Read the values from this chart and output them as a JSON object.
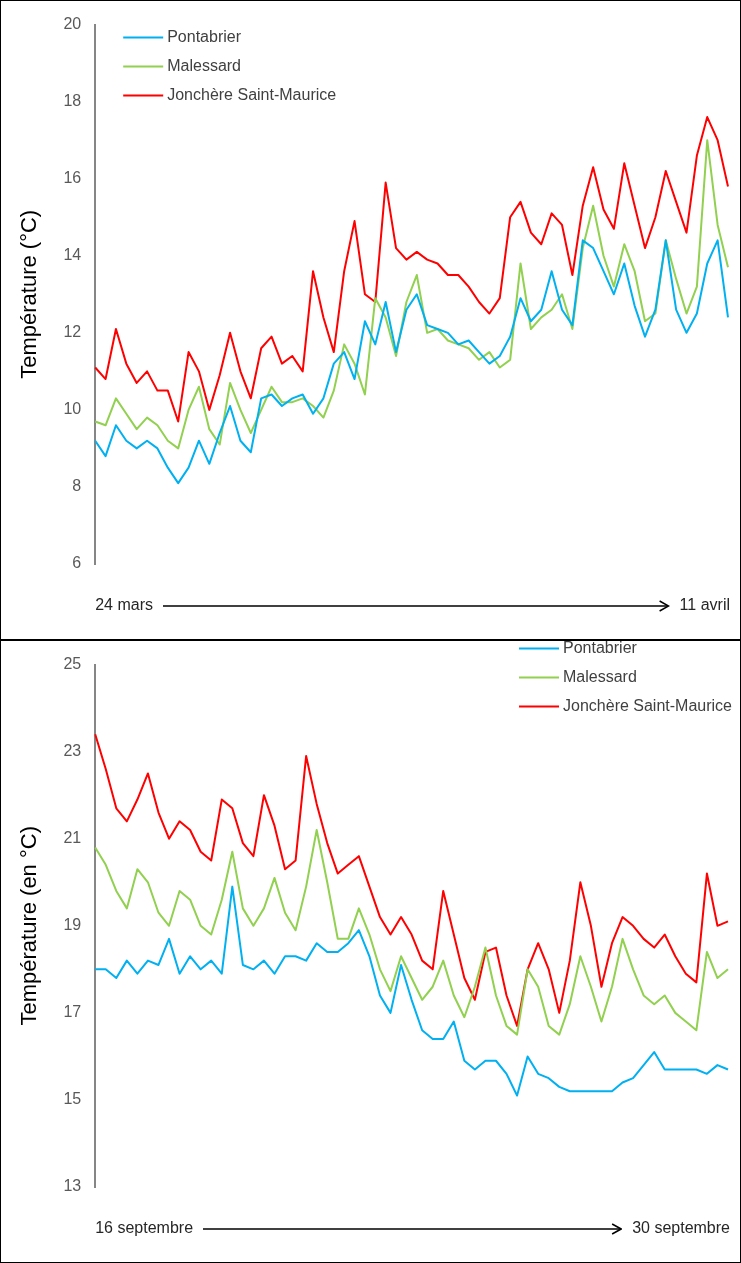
{
  "chart_data": [
    {
      "type": "line",
      "ylabel": "Température (°C)",
      "ylim": [
        6,
        20
      ],
      "yticks": [
        6,
        8,
        10,
        12,
        14,
        16,
        18,
        20
      ],
      "grid": false,
      "legend": "top left",
      "marker": "none",
      "line_style": "solid",
      "categories": [
        null,
        null,
        null,
        null,
        null,
        null,
        null,
        null,
        null,
        null,
        null,
        null,
        null,
        null,
        null,
        null,
        null,
        null,
        null,
        null,
        null,
        null,
        null,
        null,
        null,
        null,
        null,
        null,
        null,
        null,
        null,
        null,
        null,
        null,
        null,
        null,
        null,
        null,
        null,
        null,
        null,
        null,
        null,
        null,
        null,
        null,
        null,
        null,
        null,
        null,
        null,
        null,
        null,
        null,
        null,
        null,
        null,
        null,
        null,
        null,
        null,
        null
      ],
      "series": [
        {
          "name": "Pontabrier",
          "color": "#00b0f0",
          "values": [
            9.2,
            8.8,
            9.6,
            9.2,
            9.0,
            9.2,
            9.0,
            8.5,
            8.1,
            8.5,
            9.2,
            8.6,
            9.4,
            10.1,
            9.2,
            8.9,
            10.3,
            10.4,
            10.1,
            10.3,
            10.4,
            9.9,
            10.3,
            11.2,
            11.5,
            10.8,
            12.3,
            11.7,
            12.8,
            11.5,
            12.6,
            13.0,
            12.2,
            12.1,
            12.0,
            11.7,
            11.8,
            11.5,
            11.2,
            11.4,
            11.9,
            12.9,
            12.3,
            12.6,
            13.6,
            12.6,
            12.2,
            14.4,
            14.2,
            13.6,
            13.0,
            13.8,
            12.7,
            11.9,
            12.6,
            14.4,
            12.6,
            12.0,
            12.5,
            13.8,
            14.4,
            12.4
          ]
        },
        {
          "name": "Malessard",
          "color": "#92d050",
          "values": [
            9.7,
            9.6,
            10.3,
            9.9,
            9.5,
            9.8,
            9.6,
            9.2,
            9.0,
            10.0,
            10.6,
            9.5,
            9.1,
            10.7,
            10.0,
            9.4,
            10.0,
            10.6,
            10.2,
            10.2,
            10.3,
            10.1,
            9.8,
            10.5,
            11.7,
            11.2,
            10.4,
            12.9,
            12.4,
            11.4,
            12.8,
            13.5,
            12.0,
            12.1,
            11.8,
            11.7,
            11.6,
            11.3,
            11.5,
            11.1,
            11.3,
            13.8,
            12.1,
            12.4,
            12.6,
            13.0,
            12.1,
            14.2,
            15.3,
            14.0,
            13.2,
            14.3,
            13.6,
            12.3,
            12.5,
            14.4,
            13.4,
            12.5,
            13.2,
            17.0,
            14.8,
            13.7
          ]
        },
        {
          "name": "Jonchère Saint-Maurice",
          "color": "#ff0000",
          "values": [
            11.1,
            10.8,
            12.1,
            11.2,
            10.7,
            11.0,
            10.5,
            10.5,
            9.7,
            11.5,
            11.0,
            10.0,
            10.9,
            12.0,
            11.0,
            10.3,
            11.6,
            11.9,
            11.2,
            11.4,
            11.0,
            13.6,
            12.4,
            11.5,
            13.6,
            14.9,
            13.0,
            12.8,
            15.9,
            14.2,
            13.9,
            14.1,
            13.9,
            13.8,
            13.5,
            13.5,
            13.2,
            12.8,
            12.5,
            12.9,
            15.0,
            15.4,
            14.6,
            14.3,
            15.1,
            14.8,
            13.5,
            15.3,
            16.3,
            15.2,
            14.7,
            16.4,
            15.3,
            14.2,
            15.0,
            16.2,
            15.4,
            14.6,
            16.6,
            17.6,
            17.0,
            15.8
          ]
        }
      ],
      "annotations": [
        "24 mars",
        "11 avril"
      ]
    },
    {
      "type": "line",
      "ylabel": "Température (en °C)",
      "ylim": [
        13,
        25
      ],
      "yticks": [
        13,
        15,
        17,
        19,
        21,
        23,
        25
      ],
      "grid": false,
      "legend": "top right",
      "marker": "none",
      "line_style": "solid",
      "categories": [
        null,
        null,
        null,
        null,
        null,
        null,
        null,
        null,
        null,
        null,
        null,
        null,
        null,
        null,
        null,
        null,
        null,
        null,
        null,
        null,
        null,
        null,
        null,
        null,
        null,
        null,
        null,
        null,
        null,
        null,
        null,
        null,
        null,
        null,
        null,
        null,
        null,
        null,
        null,
        null,
        null,
        null,
        null,
        null,
        null,
        null,
        null,
        null,
        null,
        null,
        null,
        null,
        null,
        null,
        null,
        null,
        null,
        null,
        null,
        null,
        null
      ],
      "series": [
        {
          "name": "Pontabrier",
          "color": "#00b0f0",
          "values": [
            18.0,
            18.0,
            17.8,
            18.2,
            17.9,
            18.2,
            18.1,
            18.7,
            17.9,
            18.3,
            18.0,
            18.2,
            17.9,
            19.9,
            18.1,
            18.0,
            18.2,
            17.9,
            18.3,
            18.3,
            18.2,
            18.6,
            18.4,
            18.4,
            18.6,
            18.9,
            18.3,
            17.4,
            17.0,
            18.1,
            17.3,
            16.6,
            16.4,
            16.4,
            16.8,
            15.9,
            15.7,
            15.9,
            15.9,
            15.6,
            15.1,
            16.0,
            15.6,
            15.5,
            15.3,
            15.2,
            15.2,
            15.2,
            15.2,
            15.2,
            15.4,
            15.5,
            15.8,
            16.1,
            15.7,
            15.7,
            15.7,
            15.7,
            15.6,
            15.8,
            15.7
          ]
        },
        {
          "name": "Malessard",
          "color": "#92d050",
          "values": [
            20.8,
            20.4,
            19.8,
            19.4,
            20.3,
            20.0,
            19.3,
            19.0,
            19.8,
            19.6,
            19.0,
            18.8,
            19.6,
            20.7,
            19.4,
            19.0,
            19.4,
            20.1,
            19.3,
            18.9,
            19.9,
            21.2,
            20.0,
            18.7,
            18.7,
            19.4,
            18.8,
            18.0,
            17.5,
            18.3,
            17.8,
            17.3,
            17.6,
            18.2,
            17.4,
            16.9,
            17.6,
            18.5,
            17.4,
            16.7,
            16.5,
            18.0,
            17.6,
            16.7,
            16.5,
            17.2,
            18.3,
            17.6,
            16.8,
            17.6,
            18.7,
            18.0,
            17.4,
            17.2,
            17.4,
            17.0,
            16.8,
            16.6,
            18.4,
            17.8,
            18.0
          ]
        },
        {
          "name": "Jonchère Saint-Maurice",
          "color": "#ff0000",
          "values": [
            23.4,
            22.6,
            21.7,
            21.4,
            21.9,
            22.5,
            21.6,
            21.0,
            21.4,
            21.2,
            20.7,
            20.5,
            21.9,
            21.7,
            20.9,
            20.6,
            22.0,
            21.3,
            20.3,
            20.5,
            22.9,
            21.8,
            20.9,
            20.2,
            20.4,
            20.6,
            19.9,
            19.2,
            18.8,
            19.2,
            18.8,
            18.2,
            18.0,
            19.8,
            18.8,
            17.8,
            17.3,
            18.4,
            18.5,
            17.4,
            16.7,
            18.0,
            18.6,
            18.0,
            17.0,
            18.2,
            20.0,
            19.0,
            17.6,
            18.6,
            19.2,
            19.0,
            18.7,
            18.5,
            18.8,
            18.3,
            17.9,
            17.7,
            20.2,
            19.0,
            19.1
          ]
        }
      ],
      "annotations": [
        "16 septembre",
        "30 septembre"
      ]
    }
  ]
}
